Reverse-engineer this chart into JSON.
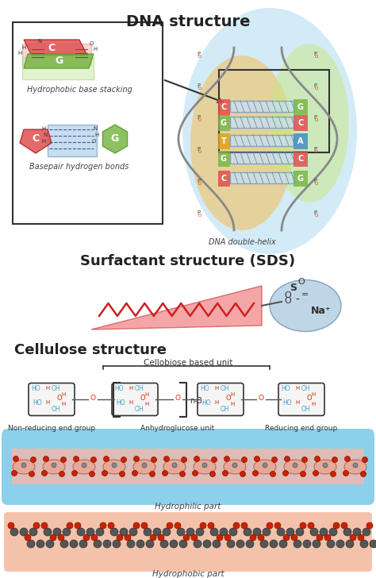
{
  "title": "DNA structure",
  "surfactant_title": "Surfactant structure (SDS)",
  "cellulose_title": "Cellulose structure",
  "bg_color": "#ffffff",
  "dna_box_labels": [
    "Hydrophobic base stacking",
    "Basepair hydrogen bonds"
  ],
  "dna_helix_label": "DNA double-helix",
  "cellobiose_label": "Cellobiose based unit",
  "unit_labels": [
    "Non-reducing end group",
    "Anhydroglucose unit",
    "Reducing end group"
  ],
  "n3_label": "n-3",
  "hydrophilic_label": "Hydrophilic part",
  "hydrophobic_label": "Hydrophobic part",
  "na_label": "Na⁺",
  "colors": {
    "red": "#cc2200",
    "green": "#7ab648",
    "blue": "#4a9fcc",
    "orange": "#e8a030",
    "light_red": "#f5b8b0",
    "light_blue": "#b0d8f0",
    "light_green": "#c8e8a0",
    "pink": "#f0a8a0",
    "salmon": "#f5c0a8",
    "teal": "#40a8b0"
  },
  "figsize": [
    4.74,
    7.28
  ],
  "dpi": 100
}
